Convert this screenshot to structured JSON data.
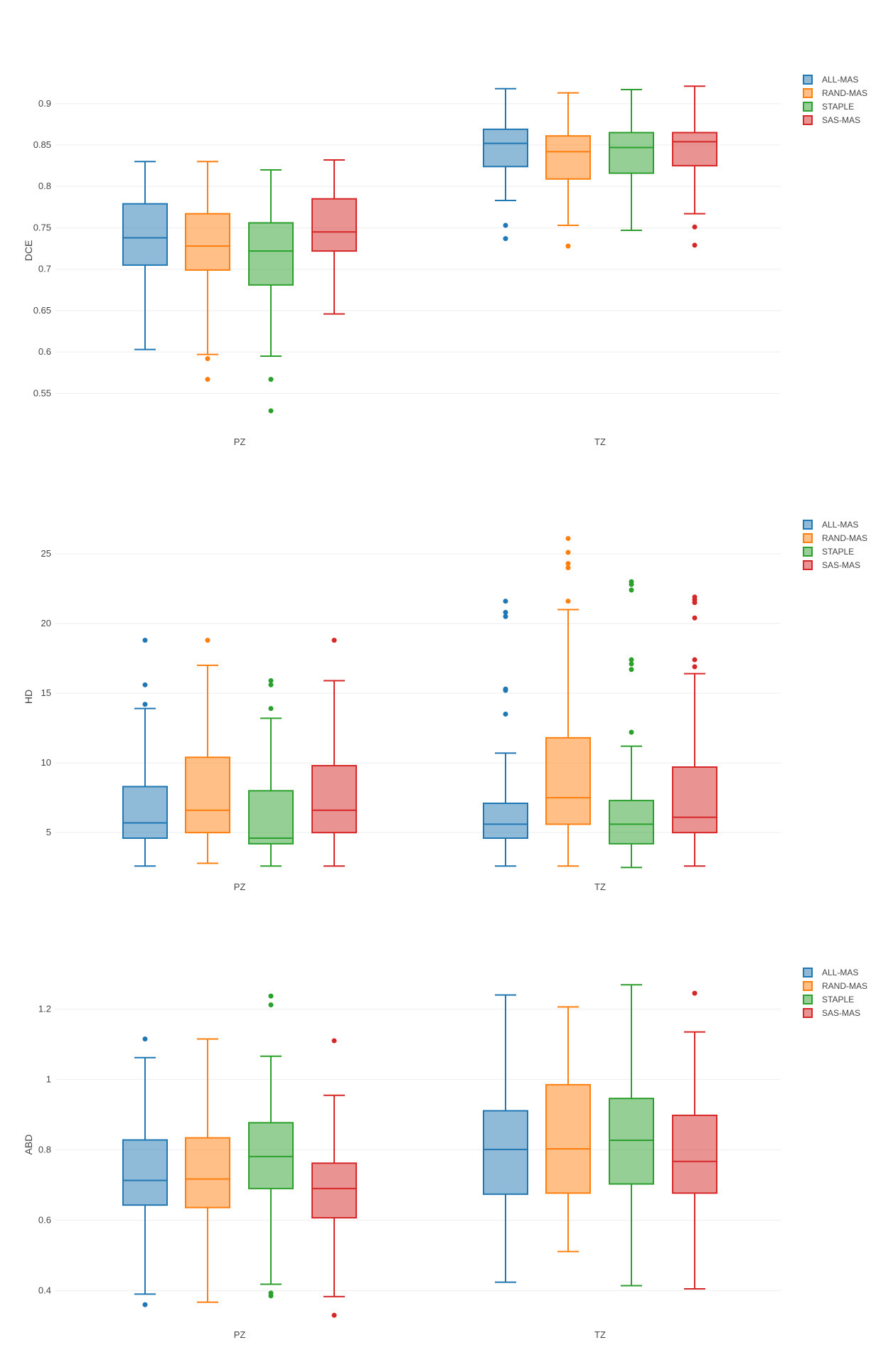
{
  "chart_data": [
    {
      "type": "box",
      "ylabel": "DCE",
      "categories": [
        "PZ",
        "TZ"
      ],
      "ylim": [
        0.51,
        0.935
      ],
      "yticks": [
        0.55,
        0.6,
        0.65,
        0.7,
        0.75,
        0.8,
        0.85,
        0.9
      ],
      "ytick_labels": [
        "0.55",
        "0.6",
        "0.65",
        "0.7",
        "0.75",
        "0.8",
        "0.85",
        "0.9"
      ],
      "legend": [
        "ALL-MAS",
        "RAND-MAS",
        "STAPLE",
        "SAS-MAS"
      ],
      "series": [
        {
          "name": "ALL-MAS",
          "color": "#1f77b4",
          "boxes": [
            {
              "category": "PZ",
              "min": 0.603,
              "q1": 0.705,
              "median": 0.738,
              "q3": 0.779,
              "max": 0.83,
              "outliers": []
            },
            {
              "category": "TZ",
              "min": 0.783,
              "q1": 0.824,
              "median": 0.852,
              "q3": 0.869,
              "max": 0.918,
              "outliers": [
                0.753,
                0.737
              ]
            }
          ]
        },
        {
          "name": "RAND-MAS",
          "color": "#ff7f0e",
          "boxes": [
            {
              "category": "PZ",
              "min": 0.597,
              "q1": 0.699,
              "median": 0.728,
              "q3": 0.767,
              "max": 0.83,
              "outliers": [
                0.592,
                0.567
              ]
            },
            {
              "category": "TZ",
              "min": 0.753,
              "q1": 0.809,
              "median": 0.842,
              "q3": 0.861,
              "max": 0.913,
              "outliers": [
                0.728
              ]
            }
          ]
        },
        {
          "name": "STAPLE",
          "color": "#2ca02c",
          "boxes": [
            {
              "category": "PZ",
              "min": 0.595,
              "q1": 0.681,
              "median": 0.722,
              "q3": 0.756,
              "max": 0.82,
              "outliers": [
                0.567,
                0.529
              ]
            },
            {
              "category": "TZ",
              "min": 0.747,
              "q1": 0.816,
              "median": 0.847,
              "q3": 0.865,
              "max": 0.917,
              "outliers": []
            }
          ]
        },
        {
          "name": "SAS-MAS",
          "color": "#d62728",
          "boxes": [
            {
              "category": "PZ",
              "min": 0.646,
              "q1": 0.722,
              "median": 0.745,
              "q3": 0.785,
              "max": 0.832,
              "outliers": []
            },
            {
              "category": "TZ",
              "min": 0.767,
              "q1": 0.825,
              "median": 0.854,
              "q3": 0.865,
              "max": 0.921,
              "outliers": [
                0.751,
                0.729
              ]
            }
          ]
        }
      ]
    },
    {
      "type": "box",
      "ylabel": "HD",
      "categories": [
        "PZ",
        "TZ"
      ],
      "ylim": [
        2.0,
        27.5
      ],
      "yticks": [
        5,
        10,
        15,
        20,
        25
      ],
      "ytick_labels": [
        "5",
        "10",
        "15",
        "20",
        "25"
      ],
      "legend": [
        "ALL-MAS",
        "RAND-MAS",
        "STAPLE",
        "SAS-MAS"
      ],
      "series": [
        {
          "name": "ALL-MAS",
          "color": "#1f77b4",
          "boxes": [
            {
              "category": "PZ",
              "min": 2.6,
              "q1": 4.6,
              "median": 5.7,
              "q3": 8.3,
              "max": 13.9,
              "outliers": [
                18.8,
                15.6,
                14.2
              ]
            },
            {
              "category": "TZ",
              "min": 2.6,
              "q1": 4.6,
              "median": 5.6,
              "q3": 7.1,
              "max": 10.7,
              "outliers": [
                21.6,
                20.8,
                20.5,
                15.3,
                15.2,
                13.5
              ]
            }
          ]
        },
        {
          "name": "RAND-MAS",
          "color": "#ff7f0e",
          "boxes": [
            {
              "category": "PZ",
              "min": 2.8,
              "q1": 5.0,
              "median": 6.6,
              "q3": 10.4,
              "max": 17.0,
              "outliers": [
                18.8
              ]
            },
            {
              "category": "TZ",
              "min": 2.6,
              "q1": 5.6,
              "median": 7.5,
              "q3": 11.8,
              "max": 21.0,
              "outliers": [
                26.1,
                25.1,
                24.3,
                24.0,
                21.6
              ]
            }
          ]
        },
        {
          "name": "STAPLE",
          "color": "#2ca02c",
          "boxes": [
            {
              "category": "PZ",
              "min": 2.6,
              "q1": 4.2,
              "median": 4.6,
              "q3": 8.0,
              "max": 13.2,
              "outliers": [
                15.9,
                15.6,
                13.9
              ]
            },
            {
              "category": "TZ",
              "min": 2.5,
              "q1": 4.2,
              "median": 5.6,
              "q3": 7.3,
              "max": 11.2,
              "outliers": [
                23.0,
                22.8,
                22.4,
                17.4,
                17.1,
                16.7,
                12.2
              ]
            }
          ]
        },
        {
          "name": "SAS-MAS",
          "color": "#d62728",
          "boxes": [
            {
              "category": "PZ",
              "min": 2.6,
              "q1": 5.0,
              "median": 6.6,
              "q3": 9.8,
              "max": 15.9,
              "outliers": [
                18.8
              ]
            },
            {
              "category": "TZ",
              "min": 2.6,
              "q1": 5.0,
              "median": 6.1,
              "q3": 9.7,
              "max": 16.4,
              "outliers": [
                21.9,
                21.7,
                21.5,
                20.4,
                17.4,
                16.9
              ]
            }
          ]
        }
      ]
    },
    {
      "type": "box",
      "ylabel": "ABD",
      "categories": [
        "PZ",
        "TZ"
      ],
      "ylim": [
        0.31,
        1.32
      ],
      "yticks": [
        0.4,
        0.6,
        0.8,
        1,
        1.2
      ],
      "ytick_labels": [
        "0.4",
        "0.6",
        "0.8",
        "1",
        "1.2"
      ],
      "legend": [
        "ALL-MAS",
        "RAND-MAS",
        "STAPLE",
        "SAS-MAS"
      ],
      "series": [
        {
          "name": "ALL-MAS",
          "color": "#1f77b4",
          "boxes": [
            {
              "category": "PZ",
              "min": 0.39,
              "q1": 0.643,
              "median": 0.713,
              "q3": 0.828,
              "max": 1.062,
              "outliers": [
                1.115,
                0.36
              ]
            },
            {
              "category": "TZ",
              "min": 0.424,
              "q1": 0.674,
              "median": 0.801,
              "q3": 0.911,
              "max": 1.24,
              "outliers": []
            }
          ]
        },
        {
          "name": "RAND-MAS",
          "color": "#ff7f0e",
          "boxes": [
            {
              "category": "PZ",
              "min": 0.367,
              "q1": 0.636,
              "median": 0.717,
              "q3": 0.834,
              "max": 1.115,
              "outliers": []
            },
            {
              "category": "TZ",
              "min": 0.511,
              "q1": 0.677,
              "median": 0.803,
              "q3": 0.985,
              "max": 1.206,
              "outliers": []
            }
          ]
        },
        {
          "name": "STAPLE",
          "color": "#2ca02c",
          "boxes": [
            {
              "category": "PZ",
              "min": 0.418,
              "q1": 0.69,
              "median": 0.781,
              "q3": 0.877,
              "max": 1.066,
              "outliers": [
                1.237,
                1.212,
                0.393,
                0.385
              ]
            },
            {
              "category": "TZ",
              "min": 0.414,
              "q1": 0.703,
              "median": 0.827,
              "q3": 0.946,
              "max": 1.269,
              "outliers": []
            }
          ]
        },
        {
          "name": "SAS-MAS",
          "color": "#d62728",
          "boxes": [
            {
              "category": "PZ",
              "min": 0.383,
              "q1": 0.607,
              "median": 0.69,
              "q3": 0.762,
              "max": 0.955,
              "outliers": [
                1.11,
                0.33
              ]
            },
            {
              "category": "TZ",
              "min": 0.405,
              "q1": 0.677,
              "median": 0.767,
              "q3": 0.898,
              "max": 1.135,
              "outliers": [
                1.245
              ]
            }
          ]
        }
      ]
    }
  ]
}
